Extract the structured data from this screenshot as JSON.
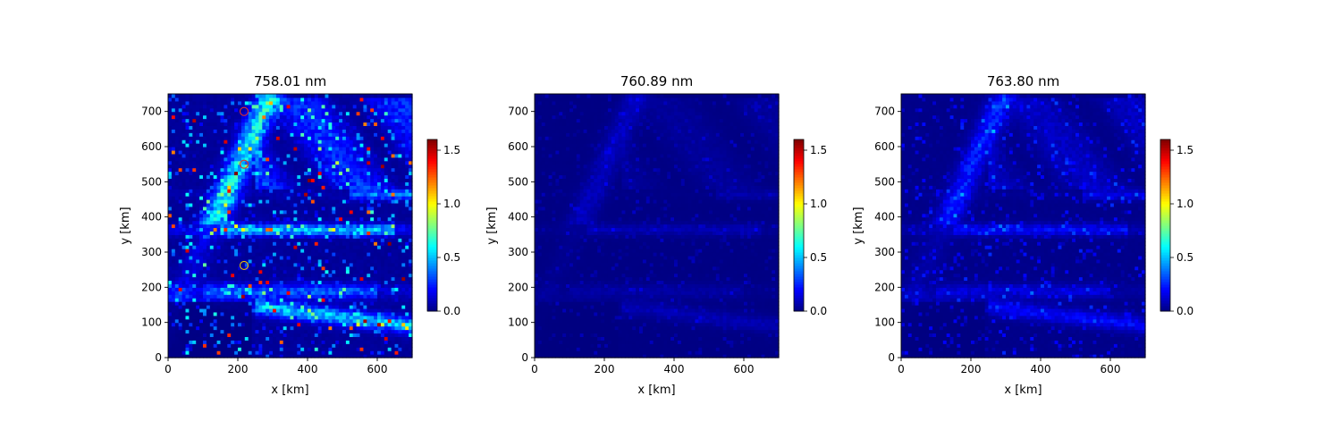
{
  "chart_data": [
    {
      "type": "heatmap",
      "title": "758.01 nm",
      "xlabel": "x [km]",
      "ylabel": "y [km]",
      "xlim": [
        0,
        700
      ],
      "ylim": [
        0,
        750
      ],
      "xticks": [
        0,
        200,
        400,
        600
      ],
      "yticks": [
        0,
        100,
        200,
        300,
        400,
        500,
        600,
        700
      ],
      "colorbar": {
        "cmap": "jet",
        "range": [
          0.0,
          1.6
        ],
        "ticks": [
          "0.0",
          "0.5",
          "1.0",
          "1.5"
        ]
      },
      "field": {
        "intensity": 1.0,
        "seed": 11
      },
      "markers": [
        {
          "x": 218,
          "y": 700,
          "color": "#e0302a"
        },
        {
          "x": 218,
          "y": 550,
          "color": "#e0302a"
        },
        {
          "x": 218,
          "y": 262,
          "color": "#e8c000"
        }
      ],
      "grid": false
    },
    {
      "type": "heatmap",
      "title": "760.89 nm",
      "xlabel": "x [km]",
      "ylabel": "y [km]",
      "xlim": [
        0,
        700
      ],
      "ylim": [
        0,
        750
      ],
      "xticks": [
        0,
        200,
        400,
        600
      ],
      "yticks": [
        0,
        100,
        200,
        300,
        400,
        500,
        600,
        700
      ],
      "colorbar": {
        "cmap": "jet",
        "range": [
          0.0,
          1.6
        ],
        "ticks": [
          "0.0",
          "0.5",
          "1.0",
          "1.5"
        ]
      },
      "field": {
        "intensity": 0.16,
        "seed": 23
      },
      "markers": [],
      "grid": false
    },
    {
      "type": "heatmap",
      "title": "763.80 nm",
      "xlabel": "x [km]",
      "ylabel": "y [km]",
      "xlim": [
        0,
        700
      ],
      "ylim": [
        0,
        750
      ],
      "xticks": [
        0,
        200,
        400,
        600
      ],
      "yticks": [
        0,
        100,
        200,
        300,
        400,
        500,
        600,
        700
      ],
      "colorbar": {
        "cmap": "jet",
        "range": [
          0.0,
          1.6
        ],
        "ticks": [
          "0.0",
          "0.5",
          "1.0",
          "1.5"
        ]
      },
      "field": {
        "intensity": 0.4,
        "seed": 37
      },
      "markers": [],
      "grid": false
    }
  ]
}
